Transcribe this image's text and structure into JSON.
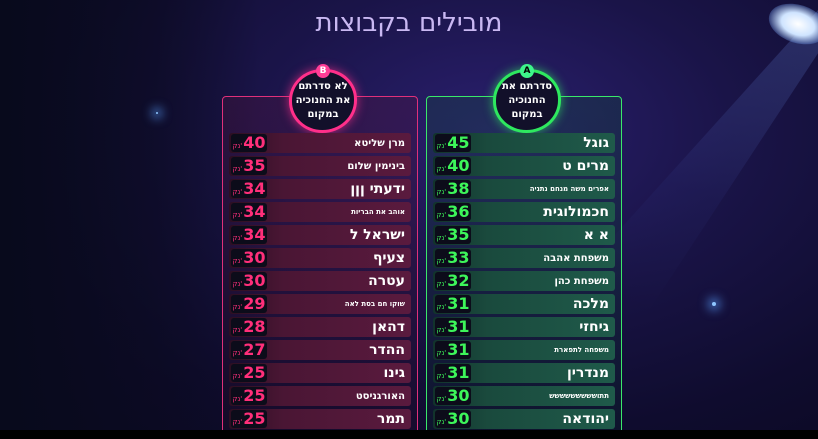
{
  "title": "מובילים בקבוצות",
  "groups": [
    {
      "id": "a",
      "badge": "A",
      "label": "סדרתם את החנוכיה במקום",
      "unit": "נק'",
      "accent": "#3ae86a",
      "rows": [
        {
          "name": "גוגל",
          "score": "45",
          "size": "lg"
        },
        {
          "name": "מרים ט",
          "score": "40",
          "size": "lg"
        },
        {
          "name": "אפרים משה מנחם נתניה",
          "score": "38",
          "size": "sm"
        },
        {
          "name": "חכמולוגית",
          "score": "36",
          "size": "lg"
        },
        {
          "name": "א א",
          "score": "35",
          "size": "lg"
        },
        {
          "name": "משפחת אהבה",
          "score": "33",
          "size": "md"
        },
        {
          "name": "משפחת כהן",
          "score": "32",
          "size": "md"
        },
        {
          "name": "מלכה",
          "score": "31",
          "size": "lg"
        },
        {
          "name": "גיחזי",
          "score": "31",
          "size": "lg"
        },
        {
          "name": "משפחה לתפארת",
          "score": "31",
          "size": "sm"
        },
        {
          "name": "מנדרין",
          "score": "31",
          "size": "lg"
        },
        {
          "name": "תתוששששששששש",
          "score": "30",
          "size": "sm"
        },
        {
          "name": "יהודאה",
          "score": "30",
          "size": "lg"
        }
      ]
    },
    {
      "id": "b",
      "badge": "B",
      "label": "לא סדרתם את החנוכיה במקום",
      "unit": "נק'",
      "accent": "#e0307a",
      "rows": [
        {
          "name": "מרן שליטא",
          "score": "40",
          "size": "md"
        },
        {
          "name": "בינימין שלום",
          "score": "35",
          "size": "md"
        },
        {
          "name": "ידעתי ןןן",
          "score": "34",
          "size": "lg"
        },
        {
          "name": "אוהב את הבריות",
          "score": "34",
          "size": "sm"
        },
        {
          "name": "ישראל ל",
          "score": "34",
          "size": "lg"
        },
        {
          "name": "צעיף",
          "score": "30",
          "size": "lg"
        },
        {
          "name": "עטרה",
          "score": "30",
          "size": "lg"
        },
        {
          "name": "שוקו חם בסת לאה",
          "score": "29",
          "size": "sm"
        },
        {
          "name": "דהאן",
          "score": "28",
          "size": "lg"
        },
        {
          "name": "ההדר",
          "score": "27",
          "size": "lg"
        },
        {
          "name": "גינו",
          "score": "25",
          "size": "lg"
        },
        {
          "name": "האורגניסט",
          "score": "25",
          "size": "md"
        },
        {
          "name": "תמר",
          "score": "25",
          "size": "lg"
        }
      ]
    }
  ]
}
